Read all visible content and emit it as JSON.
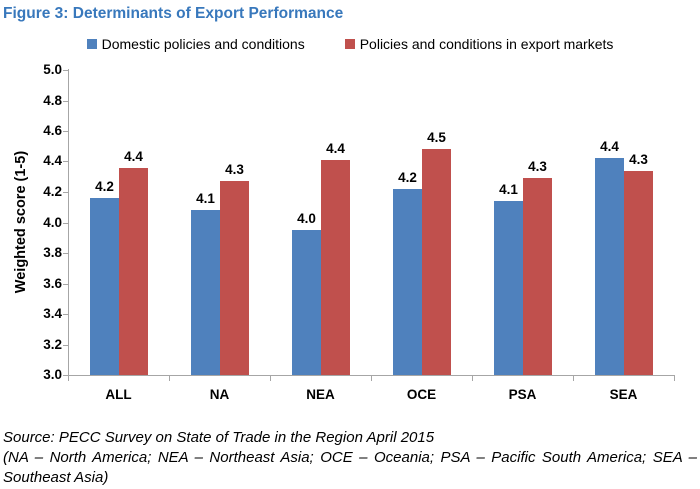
{
  "figure_title": "Figure 3: Determinants of Export Performance",
  "title_color": "#3878BC",
  "chart_data": {
    "type": "bar",
    "categories": [
      "ALL",
      "NA",
      "NEA",
      "OCE",
      "PSA",
      "SEA"
    ],
    "series": [
      {
        "name": "Domestic policies and conditions",
        "color": "#4F81BD",
        "values": [
          4.16,
          4.08,
          3.95,
          4.22,
          4.14,
          4.42
        ],
        "labels": [
          "4.2",
          "4.1",
          "4.0",
          "4.2",
          "4.1",
          "4.4"
        ]
      },
      {
        "name": "Policies and conditions in export markets",
        "color": "#C0504D",
        "values": [
          4.36,
          4.27,
          4.41,
          4.48,
          4.29,
          4.34
        ],
        "labels": [
          "4.4",
          "4.3",
          "4.4",
          "4.5",
          "4.3",
          "4.3"
        ]
      }
    ],
    "xlabel": "",
    "ylabel": "Weighted score (1-5)",
    "ylim": [
      3.0,
      5.0
    ],
    "ytick_step": 0.2,
    "yticks": [
      "5.0",
      "4.8",
      "4.6",
      "4.4",
      "4.2",
      "4.0",
      "3.8",
      "3.6",
      "3.4",
      "3.2",
      "3.0"
    ],
    "grid": false,
    "legend_position": "top",
    "axis_color": "#A6A6A6"
  },
  "footnote": {
    "lines": [
      "Source: PECC Survey on State of Trade in the Region April 2015",
      "(NA – North America; NEA – Northeast Asia; OCE – Oceania; PSA – Pacific South America; SEA –",
      "Southeast Asia)"
    ]
  }
}
